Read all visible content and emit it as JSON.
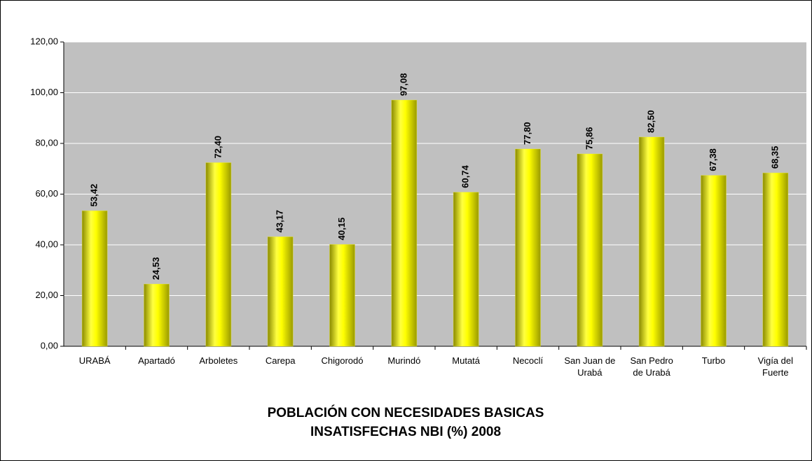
{
  "chart_data": {
    "type": "bar",
    "title": "POBLACIÓN CON NECESIDADES BASICAS INSATISFECHAS NBI (%) 2008",
    "categories": [
      "URABÁ",
      "Apartadó",
      "Arboletes",
      "Carepa",
      "Chigorodó",
      "Murindó",
      "Mutatá",
      "Necoclí",
      "San Juan de Urabá",
      "San Pedro de Urabá",
      "Turbo",
      "Vigía del Fuerte"
    ],
    "values": [
      53.42,
      24.53,
      72.4,
      43.17,
      40.15,
      97.08,
      60.74,
      77.8,
      75.86,
      82.5,
      67.38,
      68.35
    ],
    "value_labels": [
      "53,42",
      "24,53",
      "72,40",
      "43,17",
      "40,15",
      "97,08",
      "60,74",
      "77,80",
      "75,86",
      "82,50",
      "67,38",
      "68,35"
    ],
    "color": "#ffff00",
    "ylim": [
      0,
      120
    ],
    "yticks": [
      {
        "value": 0,
        "label": "0,00"
      },
      {
        "value": 20,
        "label": "20,00"
      },
      {
        "value": 40,
        "label": "40,00"
      },
      {
        "value": 60,
        "label": "60,00"
      },
      {
        "value": 80,
        "label": "80,00"
      },
      {
        "value": 100,
        "label": "100,00"
      },
      {
        "value": 120,
        "label": "120,00"
      }
    ],
    "grid": true
  }
}
